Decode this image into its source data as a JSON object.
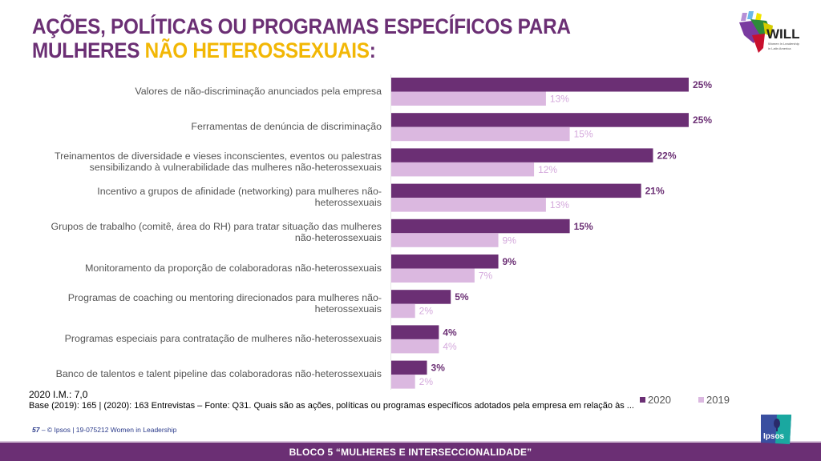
{
  "header": {
    "title_line1": "AÇÕES, POLÍTICAS OU PROGRAMAS ESPECÍFICOS PARA",
    "title_line2_prefix": "MULHERES ",
    "title_line2_highlight": "NÃO HETEROSSEXUAIS",
    "title_line2_suffix": ":",
    "logo": "WILL"
  },
  "colors": {
    "series_2020": "#6b2f74",
    "series_2019": "#dbb8e0",
    "title": "#6b2f74",
    "highlight": "#f2b705",
    "footer_bar": "#6b2f74"
  },
  "chart_data": {
    "type": "bar",
    "orientation": "horizontal",
    "title": "AÇÕES, POLÍTICAS OU PROGRAMAS ESPECÍFICOS PARA MULHERES NÃO HETEROSSEXUAIS:",
    "xlabel": "",
    "ylabel": "",
    "xlim": [
      0,
      25
    ],
    "grid": false,
    "legend_position": "bottom-right",
    "categories": [
      "Valores de não-discriminação anunciados pela empresa",
      "Ferramentas de denúncia de discriminação",
      "Treinamentos de diversidade e vieses inconscientes, eventos ou palestras sensibilizando à vulnerabilidade das mulheres não-heterossexuais",
      "Incentivo a grupos de afinidade (networking) para mulheres não-heterossexuais",
      "Grupos de trabalho (comitê, área do RH) para tratar situação das mulheres não-heterossexuais",
      "Monitoramento da proporção de colaboradoras não-heterossexuais",
      "Programas de coaching ou mentoring direcionados para mulheres não-heterossexuais",
      "Programas especiais para contratação de mulheres não-heterossexuais",
      "Banco de talentos e talent pipeline das colaboradoras não-heterossexuais"
    ],
    "category_lines": [
      [
        "Valores de não-discriminação anunciados pela empresa"
      ],
      [
        "Ferramentas de denúncia de discriminação"
      ],
      [
        "Treinamentos de diversidade e vieses inconscientes, eventos ou palestras",
        "sensibilizando à vulnerabilidade das mulheres não-heterossexuais"
      ],
      [
        "Incentivo a grupos de afinidade (networking) para mulheres não-",
        "heterossexuais"
      ],
      [
        "Grupos de trabalho (comitê, área do RH) para tratar situação das mulheres",
        "não-heterossexuais"
      ],
      [
        "Monitoramento da proporção de colaboradoras não-heterossexuais"
      ],
      [
        "Programas de coaching ou mentoring direcionados para mulheres não-",
        "heterossexuais"
      ],
      [
        "Programas especiais para contratação de mulheres não-heterossexuais"
      ],
      [
        "Banco de talentos e talent pipeline das colaboradoras não-heterossexuais"
      ]
    ],
    "series": [
      {
        "name": "2020",
        "values": [
          25,
          25,
          22,
          21,
          15,
          9,
          5,
          4,
          3
        ],
        "labels": [
          "25%",
          "25%",
          "22%",
          "21%",
          "15%",
          "9%",
          "5%",
          "4%",
          "3%"
        ]
      },
      {
        "name": "2019",
        "values": [
          13,
          15,
          12,
          13,
          9,
          7,
          2,
          4,
          2
        ],
        "labels": [
          "13%",
          "15%",
          "12%",
          "13%",
          "9%",
          "7%",
          "2%",
          "4%",
          "2%"
        ]
      }
    ]
  },
  "notes": {
    "im": "2020 I.M.: 7,0",
    "base": "Base (2019): 165 | (2020): 163 Entrevistas – Fonte: Q31. Quais são as ações, políticas ou programas específicos adotados pela empresa em relação às ..."
  },
  "legend": {
    "items": [
      {
        "label": "2020"
      },
      {
        "label": "2019"
      }
    ]
  },
  "footer": {
    "page_number": "57",
    "credit": " – © Ipsos | 19-075212 Women in Leadership",
    "section": "BLOCO 5 “MULHERES E INTERSECCIONALIDADE”",
    "brand": "Ipsos"
  }
}
